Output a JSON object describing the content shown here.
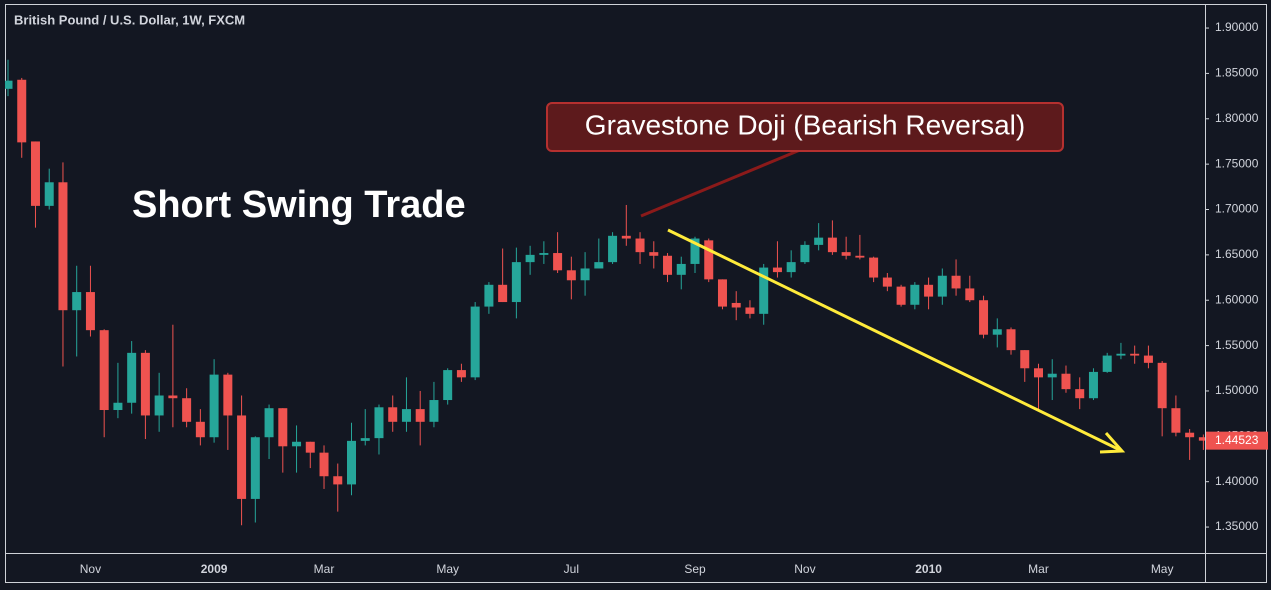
{
  "chart_data": {
    "type": "candlestick",
    "title": "British Pound / U.S. Dollar, 1W, FXCM",
    "annotations": [
      "Short Swing Trade",
      "Gravestone Doji (Bearish Reversal)"
    ],
    "up_color": "#26a69a",
    "down_color": "#ef5350",
    "categories": [
      null,
      null,
      null,
      null,
      null,
      null,
      "Nov",
      null,
      null,
      null,
      null,
      null,
      null,
      null,
      null,
      "2009",
      null,
      null,
      null,
      null,
      null,
      null,
      null,
      "Mar",
      null,
      null,
      null,
      null,
      null,
      null,
      null,
      null,
      "May",
      null,
      null,
      null,
      null,
      null,
      null,
      null,
      null,
      "Jul",
      null,
      null,
      null,
      null,
      null,
      null,
      null,
      null,
      "Sep",
      null,
      null,
      null,
      null,
      null,
      null,
      null,
      "Nov",
      null,
      null,
      null,
      null,
      null,
      null,
      null,
      null,
      "2010",
      null,
      null,
      null,
      null,
      null,
      null,
      null,
      "Mar",
      null,
      null,
      null,
      null,
      null,
      null,
      null,
      null,
      "May",
      null,
      null,
      null
    ],
    "open": [
      1.833,
      1.843,
      1.775,
      1.704,
      1.73,
      1.589,
      1.609,
      1.567,
      1.479,
      1.487,
      1.542,
      1.473,
      1.495,
      1.492,
      1.466,
      1.449,
      1.518,
      1.473,
      1.381,
      1.449,
      1.481,
      1.439,
      1.444,
      1.432,
      1.406,
      1.397,
      1.445,
      1.448,
      1.482,
      1.466,
      1.48,
      1.466,
      1.49,
      1.523,
      1.515,
      1.593,
      1.617,
      1.598,
      1.642,
      1.65,
      1.652,
      1.633,
      1.622,
      1.635,
      1.642,
      1.671,
      1.668,
      1.653,
      1.649,
      1.628,
      1.64,
      1.666,
      1.623,
      1.597,
      1.592,
      1.585,
      1.636,
      1.631,
      1.642,
      1.661,
      1.669,
      1.653,
      1.649,
      1.647,
      1.625,
      1.615,
      1.595,
      1.617,
      1.604,
      1.627,
      1.613,
      1.6,
      1.562,
      1.568,
      1.545,
      1.525,
      1.515,
      1.519,
      1.502,
      1.492,
      1.521,
      1.539,
      1.541,
      1.539,
      1.531,
      1.481,
      1.454,
      1.449
    ],
    "high": [
      1.865,
      1.845,
      1.775,
      1.745,
      1.752,
      1.638,
      1.638,
      1.568,
      1.531,
      1.555,
      1.545,
      1.52,
      1.573,
      1.503,
      1.48,
      1.535,
      1.52,
      1.495,
      1.45,
      1.485,
      1.481,
      1.462,
      1.444,
      1.44,
      1.42,
      1.465,
      1.48,
      1.485,
      1.495,
      1.515,
      1.5,
      1.51,
      1.525,
      1.53,
      1.598,
      1.62,
      1.657,
      1.658,
      1.66,
      1.665,
      1.675,
      1.648,
      1.653,
      1.668,
      1.675,
      1.705,
      1.675,
      1.665,
      1.652,
      1.648,
      1.67,
      1.668,
      1.623,
      1.61,
      1.6,
      1.64,
      1.665,
      1.655,
      1.665,
      1.685,
      1.688,
      1.67,
      1.672,
      1.648,
      1.63,
      1.617,
      1.62,
      1.625,
      1.635,
      1.645,
      1.627,
      1.605,
      1.58,
      1.57,
      1.545,
      1.53,
      1.535,
      1.528,
      1.515,
      1.525,
      1.542,
      1.553,
      1.55,
      1.55,
      1.533,
      1.495,
      1.458,
      1.452
    ],
    "low": [
      1.825,
      1.757,
      1.68,
      1.7,
      1.527,
      1.538,
      1.56,
      1.449,
      1.47,
      1.475,
      1.447,
      1.455,
      1.46,
      1.46,
      1.44,
      1.443,
      1.435,
      1.352,
      1.355,
      1.425,
      1.41,
      1.41,
      1.415,
      1.392,
      1.367,
      1.385,
      1.44,
      1.43,
      1.455,
      1.455,
      1.44,
      1.46,
      1.485,
      1.51,
      1.512,
      1.585,
      1.598,
      1.58,
      1.628,
      1.64,
      1.63,
      1.601,
      1.605,
      1.635,
      1.64,
      1.66,
      1.64,
      1.635,
      1.62,
      1.612,
      1.63,
      1.62,
      1.59,
      1.578,
      1.58,
      1.573,
      1.625,
      1.625,
      1.64,
      1.655,
      1.65,
      1.645,
      1.645,
      1.62,
      1.61,
      1.593,
      1.59,
      1.59,
      1.595,
      1.605,
      1.598,
      1.558,
      1.548,
      1.54,
      1.51,
      1.48,
      1.49,
      1.498,
      1.48,
      1.49,
      1.52,
      1.535,
      1.53,
      1.525,
      1.45,
      1.45,
      1.424,
      1.435
    ],
    "close": [
      1.842,
      1.774,
      1.704,
      1.73,
      1.589,
      1.609,
      1.567,
      1.479,
      1.487,
      1.542,
      1.473,
      1.495,
      1.492,
      1.466,
      1.449,
      1.518,
      1.473,
      1.381,
      1.449,
      1.481,
      1.439,
      1.444,
      1.432,
      1.406,
      1.397,
      1.445,
      1.448,
      1.482,
      1.466,
      1.48,
      1.466,
      1.49,
      1.523,
      1.515,
      1.593,
      1.617,
      1.598,
      1.642,
      1.65,
      1.652,
      1.633,
      1.622,
      1.635,
      1.642,
      1.671,
      1.668,
      1.653,
      1.649,
      1.628,
      1.64,
      1.668,
      1.623,
      1.593,
      1.592,
      1.585,
      1.636,
      1.631,
      1.642,
      1.661,
      1.669,
      1.653,
      1.649,
      1.647,
      1.625,
      1.615,
      1.595,
      1.617,
      1.604,
      1.627,
      1.613,
      1.6,
      1.562,
      1.568,
      1.545,
      1.525,
      1.515,
      1.519,
      1.502,
      1.492,
      1.521,
      1.539,
      1.541,
      1.539,
      1.531,
      1.481,
      1.454,
      1.449,
      1.44523
    ],
    "ylim": [
      1.3214,
      1.9254
    ],
    "yticks": [
      {
        "value": 1.35,
        "label": "1.35000"
      },
      {
        "value": 1.4,
        "label": "1.40000"
      },
      {
        "value": 1.45,
        "label": "1.45000"
      },
      {
        "value": 1.5,
        "label": "1.50000"
      },
      {
        "value": 1.55,
        "label": "1.55000"
      },
      {
        "value": 1.6,
        "label": "1.60000"
      },
      {
        "value": 1.65,
        "label": "1.65000"
      },
      {
        "value": 1.7,
        "label": "1.70000"
      },
      {
        "value": 1.75,
        "label": "1.75000"
      },
      {
        "value": 1.8,
        "label": "1.80000"
      },
      {
        "value": 1.85,
        "label": "1.85000"
      },
      {
        "value": 1.9,
        "label": "1.90000"
      }
    ]
  }
}
